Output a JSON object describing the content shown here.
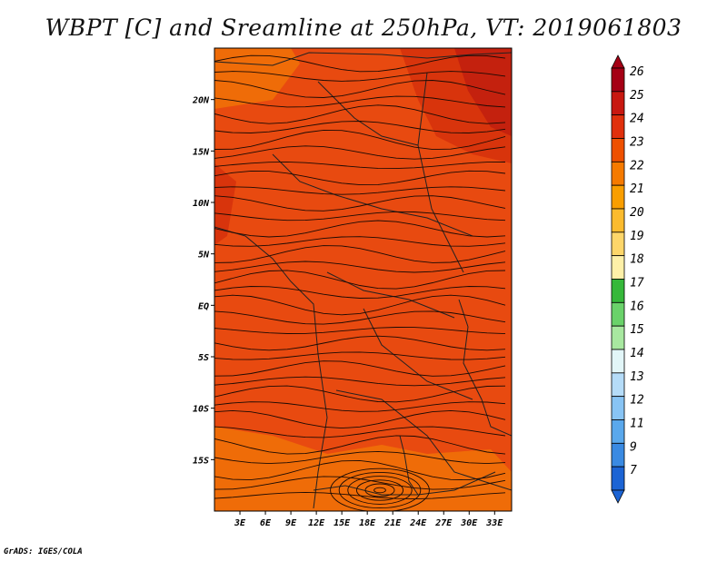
{
  "title": "WBPT [C] and Sreamline at 250hPa, VT: 2019061803",
  "credit": "GrADS: IGES/COLA",
  "map": {
    "lat_labels": [
      "20N",
      "15N",
      "10N",
      "5N",
      "EQ",
      "5S",
      "10S",
      "15S"
    ],
    "lat_values": [
      20,
      15,
      10,
      5,
      0,
      -5,
      -10,
      -15
    ],
    "lon_labels": [
      "3E",
      "6E",
      "9E",
      "12E",
      "15E",
      "18E",
      "21E",
      "24E",
      "27E",
      "30E",
      "33E"
    ],
    "lon_values": [
      3,
      6,
      9,
      12,
      15,
      18,
      21,
      24,
      27,
      30,
      33
    ],
    "lat_range": [
      -20,
      25
    ],
    "lon_range": [
      0,
      35
    ],
    "field": "WBPT",
    "level": "250hPa",
    "valid_time": "2019061803"
  },
  "colorbar": {
    "labels": [
      "26",
      "25",
      "24",
      "23",
      "22",
      "21",
      "20",
      "19",
      "18",
      "17",
      "16",
      "15",
      "14",
      "13",
      "12",
      "11",
      "9",
      "7"
    ],
    "colors": [
      "#a50015",
      "#c81810",
      "#e0300c",
      "#ee5000",
      "#f57a00",
      "#f99e00",
      "#fbbb2e",
      "#fdd66a",
      "#fef0a8",
      "#36b83a",
      "#6ad26a",
      "#a8e8a0",
      "#e2f6f8",
      "#b5dcf8",
      "#88c4f4",
      "#5aa8ec",
      "#3a8ae2",
      "#1c64d4"
    ]
  },
  "colors": {
    "field_main": "#e84a10",
    "field_warm": "#d8340c",
    "field_hot": "#c4210e",
    "field_cool": "#ef6c08"
  }
}
